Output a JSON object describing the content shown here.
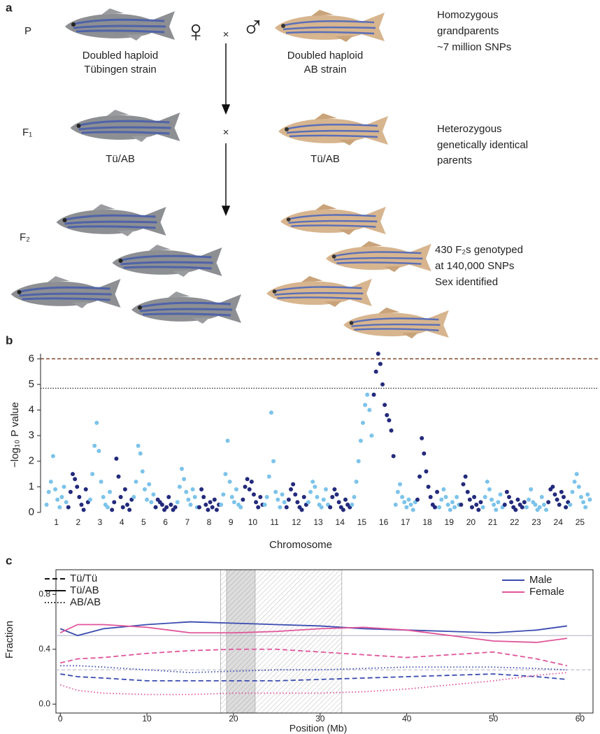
{
  "panel_a": {
    "label": "a",
    "rows": [
      {
        "gen": "P",
        "left": [
          "Doubled haploid",
          "Tübingen strain"
        ],
        "right": [
          "Doubled haploid",
          "AB strain"
        ],
        "note": [
          "Homozygous",
          "grandparents",
          "~7 million SNPs"
        ],
        "female": "♀",
        "male": "♂",
        "cross": "×"
      },
      {
        "gen": "F₁",
        "left": [
          "Tü/AB"
        ],
        "right": [
          "Tü/AB"
        ],
        "note": [
          "Heterozygous",
          "genetically identical",
          "parents"
        ],
        "cross": "×"
      },
      {
        "gen": "F₂",
        "note": [
          "430 F₂s genotyped",
          "at 140,000 SNPs",
          "Sex identified"
        ]
      }
    ]
  },
  "chart_data": [
    {
      "type": "scatter",
      "panel_label": "b",
      "ylabel": "−log₁₀ P value",
      "xlabel": "Chromosome",
      "categories": [
        "1",
        "2",
        "3",
        "4",
        "5",
        "6",
        "7",
        "8",
        "9",
        "10",
        "11",
        "12",
        "13",
        "14",
        "15",
        "16",
        "17",
        "18",
        "19",
        "20",
        "21",
        "22",
        "23",
        "24",
        "25"
      ],
      "values": [
        [
          0.3,
          0.8,
          1.2,
          2.2,
          0.9,
          0.5,
          0.2,
          0.6,
          1.0,
          0.4
        ],
        [
          0.2,
          0.8,
          1.5,
          1.3,
          1.0,
          0.6,
          0.3,
          0.1,
          0.9,
          0.4
        ],
        [
          0.5,
          1.5,
          2.6,
          3.5,
          2.4,
          1.2,
          0.6,
          0.3,
          0.2,
          0.8
        ],
        [
          0.1,
          0.4,
          2.1,
          1.4,
          0.6,
          0.2,
          0.9,
          0.3,
          0.1,
          0.5
        ],
        [
          0.6,
          1.2,
          2.6,
          2.3,
          1.6,
          0.9,
          0.5,
          1.1,
          0.4,
          0.7
        ],
        [
          0.2,
          0.5,
          0.4,
          0.3,
          0.1,
          0.2,
          0.6,
          0.3,
          0.1,
          0.2
        ],
        [
          0.4,
          1.0,
          1.7,
          1.3,
          0.8,
          0.5,
          0.3,
          0.9,
          0.6,
          0.2
        ],
        [
          0.2,
          0.9,
          0.6,
          0.3,
          0.1,
          0.4,
          0.2,
          0.5,
          0.1,
          0.3
        ],
        [
          0.3,
          0.7,
          1.5,
          2.8,
          1.2,
          0.6,
          0.4,
          0.9,
          0.3,
          0.2
        ],
        [
          0.5,
          1.0,
          1.3,
          0.9,
          1.2,
          0.7,
          0.4,
          0.2,
          0.6,
          0.3
        ],
        [
          0.3,
          0.6,
          1.4,
          3.9,
          2.0,
          0.8,
          0.5,
          0.2,
          0.7,
          0.4
        ],
        [
          0.2,
          0.5,
          0.9,
          1.1,
          0.7,
          0.4,
          0.2,
          0.1,
          0.6,
          0.3
        ],
        [
          0.4,
          0.8,
          1.2,
          1.0,
          0.6,
          0.3,
          0.2,
          0.5,
          0.9,
          0.3
        ],
        [
          0.2,
          0.6,
          0.9,
          0.7,
          0.4,
          0.2,
          0.1,
          0.5,
          0.3,
          0.2
        ],
        [
          0.3,
          0.6,
          1.2,
          2.0,
          2.8,
          3.5,
          4.2,
          4.6,
          4.0,
          3.0
        ],
        [
          4.6,
          5.5,
          6.2,
          5.8,
          5.0,
          4.2,
          3.8,
          3.6,
          3.2,
          2.2
        ],
        [
          0.3,
          0.8,
          1.1,
          0.6,
          0.4,
          0.2,
          0.5,
          0.3,
          0.1,
          0.4
        ],
        [
          0.5,
          1.4,
          2.9,
          2.3,
          1.6,
          1.0,
          0.6,
          0.3,
          0.2,
          0.8
        ],
        [
          0.2,
          0.5,
          0.9,
          0.6,
          0.3,
          0.1,
          0.4,
          0.2,
          0.6,
          0.3
        ],
        [
          0.3,
          1.1,
          1.4,
          0.8,
          0.5,
          0.2,
          0.6,
          0.3,
          0.1,
          0.4
        ],
        [
          0.2,
          0.6,
          1.2,
          0.9,
          0.5,
          0.3,
          0.1,
          0.4,
          0.7,
          0.2
        ],
        [
          0.3,
          0.8,
          0.6,
          0.4,
          0.2,
          0.1,
          0.5,
          0.3,
          0.2,
          0.4
        ],
        [
          0.2,
          0.5,
          0.9,
          0.4,
          0.3,
          0.1,
          0.2,
          0.6,
          0.3,
          0.1
        ],
        [
          0.4,
          0.9,
          1.0,
          0.7,
          0.5,
          0.3,
          0.8,
          0.6,
          0.2,
          0.4
        ],
        [
          0.3,
          0.8,
          1.2,
          1.5,
          1.0,
          0.6,
          0.4,
          0.2,
          0.7,
          0.5
        ]
      ],
      "colors": [
        "#7cc3ea",
        "#232a7c"
      ],
      "ylim": [
        0,
        6.2
      ],
      "yticks": [
        0,
        1,
        2,
        3,
        4,
        5,
        6
      ],
      "thresholds": [
        {
          "value": 6.0,
          "color": "#7a3b1f",
          "dash": "5,3"
        },
        {
          "value": 4.85,
          "color": "#333333",
          "dash": "1.5,2"
        }
      ]
    },
    {
      "type": "line",
      "panel_label": "c",
      "ylabel": "Fraction",
      "xlabel": "Position (Mb)",
      "x": [
        0,
        2,
        5,
        10,
        15,
        20,
        25,
        30,
        35,
        40,
        45,
        50,
        55,
        58.5
      ],
      "genotypes": [
        {
          "name": "Tü/Tü",
          "dash": "7,4"
        },
        {
          "name": "Tü/AB",
          "dash": "none"
        },
        {
          "name": "AB/AB",
          "dash": "1.5,3"
        }
      ],
      "sexes": [
        {
          "name": "Male",
          "color": "#3a4bb0"
        },
        {
          "name": "Female",
          "color": "#e0559a"
        }
      ],
      "series": [
        {
          "sex": 0,
          "genotype": 1,
          "values": [
            0.55,
            0.5,
            0.55,
            0.58,
            0.6,
            0.59,
            0.58,
            0.57,
            0.55,
            0.54,
            0.53,
            0.52,
            0.54,
            0.57
          ]
        },
        {
          "sex": 1,
          "genotype": 1,
          "values": [
            0.52,
            0.58,
            0.58,
            0.56,
            0.52,
            0.52,
            0.53,
            0.55,
            0.56,
            0.54,
            0.5,
            0.46,
            0.45,
            0.48
          ]
        },
        {
          "sex": 0,
          "genotype": 0,
          "values": [
            0.22,
            0.2,
            0.19,
            0.17,
            0.17,
            0.17,
            0.17,
            0.18,
            0.19,
            0.2,
            0.21,
            0.22,
            0.2,
            0.18
          ]
        },
        {
          "sex": 1,
          "genotype": 0,
          "values": [
            0.3,
            0.33,
            0.34,
            0.37,
            0.39,
            0.4,
            0.4,
            0.38,
            0.36,
            0.34,
            0.36,
            0.38,
            0.33,
            0.28
          ]
        },
        {
          "sex": 0,
          "genotype": 2,
          "values": [
            0.28,
            0.28,
            0.27,
            0.25,
            0.23,
            0.24,
            0.25,
            0.25,
            0.26,
            0.27,
            0.27,
            0.27,
            0.26,
            0.25
          ]
        },
        {
          "sex": 1,
          "genotype": 2,
          "values": [
            0.14,
            0.1,
            0.08,
            0.07,
            0.07,
            0.08,
            0.08,
            0.08,
            0.09,
            0.11,
            0.14,
            0.17,
            0.21,
            0.23
          ]
        }
      ],
      "xlim": [
        -0.5,
        61.5
      ],
      "ylim": [
        -0.065,
        0.98
      ],
      "xticks": [
        0,
        10,
        20,
        30,
        40,
        50,
        60
      ],
      "yticks": [
        {
          "value": 0,
          "label": "0.0"
        },
        0.4,
        0.8
      ],
      "hlines": [
        0.5,
        0.25
      ],
      "shaded": [
        [
          18.5,
          32.5
        ],
        [
          19.2,
          22.5
        ]
      ]
    }
  ]
}
